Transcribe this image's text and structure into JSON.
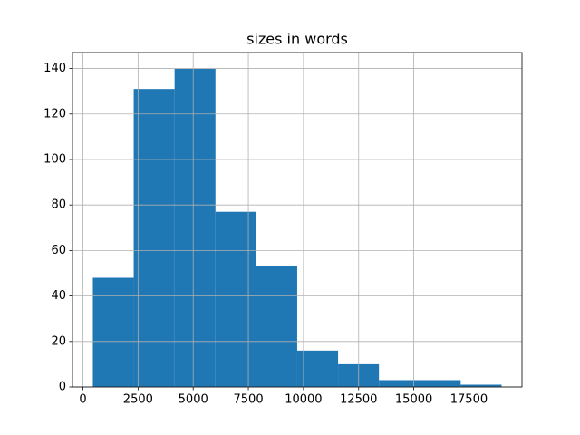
{
  "chart_data": {
    "type": "histogram",
    "title": "sizes in words",
    "bins": [
      450,
      2303,
      4156,
      6009,
      7862,
      9715,
      11568,
      13421,
      15274,
      17127,
      18980
    ],
    "values": [
      48,
      131,
      140,
      77,
      53,
      16,
      10,
      3,
      3,
      1
    ],
    "color": "#1f77b4",
    "xlim": [
      -473,
      19906
    ],
    "xticks": [
      0,
      2500,
      5000,
      7500,
      10000,
      12500,
      15000,
      17500
    ],
    "ylim": [
      0,
      147
    ],
    "yticks": [
      0,
      20,
      40,
      60,
      80,
      100,
      120,
      140
    ],
    "grid": true
  }
}
